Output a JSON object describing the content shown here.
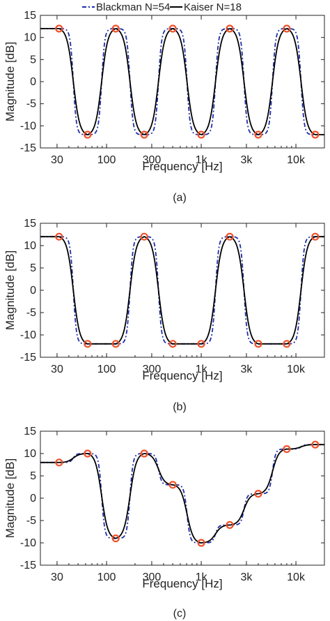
{
  "legend": {
    "items": [
      {
        "label": "Blackman N=54",
        "color": "#1f2fa8",
        "dash": "dash-dot"
      },
      {
        "label": "Kaiser N=18",
        "color": "#000000",
        "dash": "solid"
      }
    ]
  },
  "colors": {
    "blackman": "#1f2fa8",
    "kaiser": "#000000",
    "markers": "#f0522a"
  },
  "chart_data": [
    {
      "type": "line",
      "caption": "(a)",
      "xlabel": "Frequency [Hz]",
      "ylabel": "Magnitude [dB]",
      "xscale": "log",
      "xlim": [
        20,
        20000
      ],
      "ylim": [
        -15,
        15
      ],
      "yticks": [
        -15,
        -10,
        -5,
        0,
        5,
        10,
        15
      ],
      "xticks": [
        30,
        100,
        300,
        1000,
        3000,
        10000
      ],
      "xtick_labels": [
        "30",
        "100",
        "300",
        "1k",
        "3k",
        "10k"
      ],
      "grid": false,
      "legend_position": "top",
      "series": [
        {
          "name": "Blackman N=54"
        },
        {
          "name": "Kaiser N=18"
        }
      ],
      "target_points": {
        "x": [
          31.5,
          63,
          125,
          250,
          500,
          1000,
          2000,
          4000,
          8000,
          16000
        ],
        "y": [
          12,
          -12,
          12,
          -12,
          12,
          -12,
          12,
          -12,
          12,
          -12
        ]
      }
    },
    {
      "type": "line",
      "caption": "(b)",
      "xlabel": "Frequency [Hz]",
      "ylabel": "Magnitude [dB]",
      "xscale": "log",
      "xlim": [
        20,
        20000
      ],
      "ylim": [
        -15,
        15
      ],
      "yticks": [
        -15,
        -10,
        -5,
        0,
        5,
        10,
        15
      ],
      "xticks": [
        30,
        100,
        300,
        1000,
        3000,
        10000
      ],
      "xtick_labels": [
        "30",
        "100",
        "300",
        "1k",
        "3k",
        "10k"
      ],
      "grid": false,
      "series": [
        {
          "name": "Blackman N=54"
        },
        {
          "name": "Kaiser N=18"
        }
      ],
      "target_points": {
        "x": [
          31.5,
          63,
          125,
          250,
          500,
          1000,
          2000,
          4000,
          8000,
          16000
        ],
        "y": [
          12,
          -12,
          -12,
          12,
          -12,
          -12,
          12,
          -12,
          -12,
          12
        ]
      }
    },
    {
      "type": "line",
      "caption": "(c)",
      "xlabel": "Frequency [Hz]",
      "ylabel": "Magnitude [dB]",
      "xscale": "log",
      "xlim": [
        20,
        20000
      ],
      "ylim": [
        -15,
        15
      ],
      "yticks": [
        -15,
        -10,
        -5,
        0,
        5,
        10,
        15
      ],
      "xticks": [
        30,
        100,
        300,
        1000,
        3000,
        10000
      ],
      "xtick_labels": [
        "30",
        "100",
        "300",
        "1k",
        "3k",
        "10k"
      ],
      "grid": false,
      "series": [
        {
          "name": "Blackman N=54"
        },
        {
          "name": "Kaiser N=18"
        }
      ],
      "target_points": {
        "x": [
          31.5,
          63,
          125,
          250,
          500,
          1000,
          2000,
          4000,
          8000,
          16000
        ],
        "y": [
          8,
          10,
          -9,
          10,
          3,
          -10,
          -6,
          1,
          11,
          12
        ]
      }
    }
  ]
}
